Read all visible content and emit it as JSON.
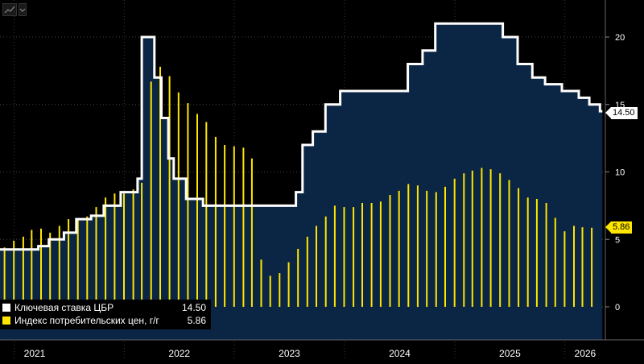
{
  "colors": {
    "background": "#000000",
    "area": "#0b2545",
    "rate_line": "#ffffff",
    "cpi_bars": "#ffe600"
  },
  "toolbar": {
    "chart_icon": "line-chart-icon",
    "menu_icon": "chevron-down-icon"
  },
  "legend": [
    {
      "name": "Ключевая ставка ЦБР",
      "value": "14.50",
      "color": "#ffffff"
    },
    {
      "name": "Индекс потребительских цен, г/г",
      "value": "5.86",
      "color": "#ffe600"
    }
  ],
  "last_value_tags": {
    "rate": "14.50",
    "cpi": "5.86"
  },
  "x_years": [
    "2021",
    "2022",
    "2023",
    "2024",
    "2025",
    "2026"
  ],
  "chart_data": {
    "type": "line",
    "y_ticks": [
      0,
      5,
      10,
      15,
      20
    ],
    "ylim": [
      -2.5,
      22
    ],
    "xlim": [
      "2020-11-15",
      "2026-05-15"
    ],
    "series": [
      {
        "name": "Ключевая ставка ЦБР",
        "kind": "step-area",
        "points": [
          [
            "2020-11-15",
            4.25
          ],
          [
            "2021-03-22",
            4.5
          ],
          [
            "2021-04-26",
            5.0
          ],
          [
            "2021-06-15",
            5.5
          ],
          [
            "2021-07-26",
            6.5
          ],
          [
            "2021-09-13",
            6.75
          ],
          [
            "2021-10-25",
            7.5
          ],
          [
            "2021-12-20",
            8.5
          ],
          [
            "2022-02-14",
            9.5
          ],
          [
            "2022-02-28",
            20.0
          ],
          [
            "2022-04-11",
            17.0
          ],
          [
            "2022-05-04",
            14.0
          ],
          [
            "2022-05-27",
            11.0
          ],
          [
            "2022-06-14",
            9.5
          ],
          [
            "2022-07-25",
            8.0
          ],
          [
            "2022-09-19",
            7.5
          ],
          [
            "2023-07-24",
            8.5
          ],
          [
            "2023-08-15",
            12.0
          ],
          [
            "2023-09-18",
            13.0
          ],
          [
            "2023-10-30",
            15.0
          ],
          [
            "2023-12-18",
            16.0
          ],
          [
            "2024-07-29",
            18.0
          ],
          [
            "2024-09-16",
            19.0
          ],
          [
            "2024-10-28",
            21.0
          ],
          [
            "2025-06-09",
            20.0
          ],
          [
            "2025-07-28",
            18.0
          ],
          [
            "2025-09-15",
            17.0
          ],
          [
            "2025-10-27",
            16.5
          ],
          [
            "2025-12-22",
            16.0
          ],
          [
            "2026-02-16",
            15.5
          ],
          [
            "2026-03-23",
            15.0
          ],
          [
            "2026-04-27",
            14.5
          ],
          [
            "2026-05-05",
            14.5
          ]
        ]
      },
      {
        "name": "Индекс потребительских цен, г/г",
        "kind": "bar",
        "points": [
          [
            "2020-11-30",
            4.4
          ],
          [
            "2020-12-31",
            4.9
          ],
          [
            "2021-01-31",
            5.2
          ],
          [
            "2021-02-28",
            5.7
          ],
          [
            "2021-03-31",
            5.8
          ],
          [
            "2021-04-30",
            5.5
          ],
          [
            "2021-05-31",
            6.0
          ],
          [
            "2021-06-30",
            6.5
          ],
          [
            "2021-07-31",
            6.5
          ],
          [
            "2021-08-31",
            6.7
          ],
          [
            "2021-09-30",
            7.4
          ],
          [
            "2021-10-31",
            8.1
          ],
          [
            "2021-11-30",
            8.4
          ],
          [
            "2021-12-31",
            8.4
          ],
          [
            "2022-01-31",
            8.7
          ],
          [
            "2022-02-28",
            9.2
          ],
          [
            "2022-03-31",
            16.7
          ],
          [
            "2022-04-30",
            17.8
          ],
          [
            "2022-05-31",
            17.1
          ],
          [
            "2022-06-30",
            15.9
          ],
          [
            "2022-07-31",
            15.1
          ],
          [
            "2022-08-31",
            14.3
          ],
          [
            "2022-09-30",
            13.7
          ],
          [
            "2022-10-31",
            12.6
          ],
          [
            "2022-11-30",
            12.0
          ],
          [
            "2022-12-31",
            11.9
          ],
          [
            "2023-01-31",
            11.8
          ],
          [
            "2023-02-28",
            11.0
          ],
          [
            "2023-03-31",
            3.5
          ],
          [
            "2023-04-30",
            2.3
          ],
          [
            "2023-05-31",
            2.5
          ],
          [
            "2023-06-30",
            3.3
          ],
          [
            "2023-07-31",
            4.3
          ],
          [
            "2023-08-31",
            5.2
          ],
          [
            "2023-09-30",
            6.0
          ],
          [
            "2023-10-31",
            6.7
          ],
          [
            "2023-11-30",
            7.5
          ],
          [
            "2023-12-31",
            7.4
          ],
          [
            "2024-01-31",
            7.4
          ],
          [
            "2024-02-29",
            7.7
          ],
          [
            "2024-03-31",
            7.7
          ],
          [
            "2024-04-30",
            7.8
          ],
          [
            "2024-05-31",
            8.3
          ],
          [
            "2024-06-30",
            8.6
          ],
          [
            "2024-07-31",
            9.1
          ],
          [
            "2024-08-31",
            9.0
          ],
          [
            "2024-09-30",
            8.6
          ],
          [
            "2024-10-31",
            8.5
          ],
          [
            "2024-11-30",
            8.9
          ],
          [
            "2024-12-31",
            9.5
          ],
          [
            "2025-01-31",
            9.9
          ],
          [
            "2025-02-28",
            10.1
          ],
          [
            "2025-03-31",
            10.3
          ],
          [
            "2025-04-30",
            10.2
          ],
          [
            "2025-05-31",
            9.9
          ],
          [
            "2025-06-30",
            9.4
          ],
          [
            "2025-07-31",
            8.8
          ],
          [
            "2025-08-31",
            8.1
          ],
          [
            "2025-09-30",
            8.0
          ],
          [
            "2025-10-31",
            7.7
          ],
          [
            "2025-11-30",
            6.6
          ],
          [
            "2025-12-31",
            5.6
          ],
          [
            "2026-01-31",
            6.0
          ],
          [
            "2026-02-28",
            5.9
          ],
          [
            "2026-03-31",
            5.86
          ]
        ]
      }
    ]
  }
}
